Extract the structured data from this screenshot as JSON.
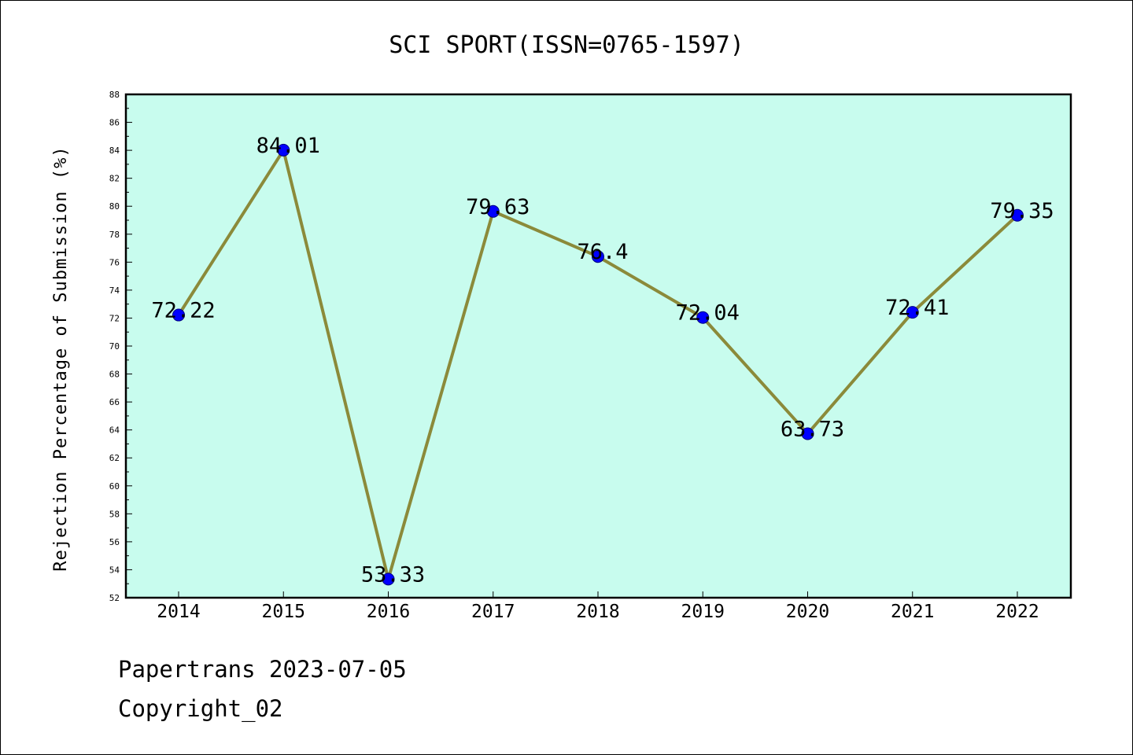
{
  "chart_data": {
    "type": "line",
    "title": "SCI SPORT(ISSN=0765-1597)",
    "xlabel": "",
    "ylabel": "Rejection Percentage of Submission (%)",
    "categories": [
      "2014",
      "2015",
      "2016",
      "2017",
      "2018",
      "2019",
      "2020",
      "2021",
      "2022"
    ],
    "series": [
      {
        "values": [
          72.22,
          84.01,
          53.33,
          79.63,
          76.4,
          72.04,
          63.73,
          72.41,
          79.35
        ],
        "labels": [
          "72.22",
          "84.01",
          "53.33",
          "79.63",
          "76.4",
          "72.04",
          "63.73",
          "72.41",
          "79.35"
        ]
      }
    ],
    "ylim": [
      52,
      88
    ],
    "yticks": [
      "52",
      "54",
      "56",
      "58",
      "60",
      "62",
      "64",
      "66",
      "68",
      "70",
      "72",
      "74",
      "76",
      "78",
      "80",
      "82",
      "84",
      "86",
      "88"
    ],
    "grid": false,
    "legend": "none",
    "colors": {
      "plot_background": "#c8fcee",
      "line": "#8b8a3a",
      "marker_fill": "#0000ff",
      "marker_edge": "#000080"
    }
  },
  "footer": {
    "line1": "Papertrans 2023-07-05",
    "line2": "Copyright_02"
  }
}
